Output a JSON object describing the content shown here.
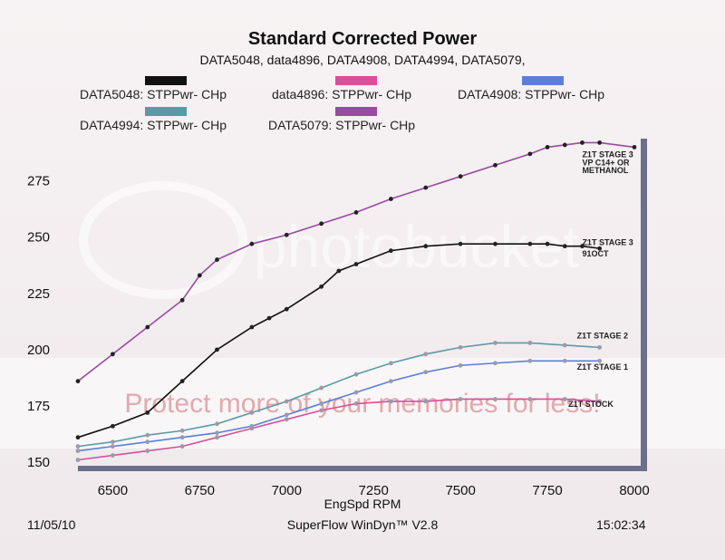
{
  "header": {
    "title": "Standard Corrected Power",
    "subtitle": "DATA5048, data4896, DATA4908, DATA4994, DATA5079,"
  },
  "legend": [
    {
      "label": "DATA5048: STPPwr- CHp",
      "color": "#111111"
    },
    {
      "label": "data4896: STPPwr- CHp",
      "color": "#d94f9a"
    },
    {
      "label": "DATA4908: STPPwr- CHp",
      "color": "#5b7fd6"
    },
    {
      "label": "DATA4994: STPPwr- CHp",
      "color": "#5a9aa6"
    },
    {
      "label": "DATA5079: STPPwr- CHp",
      "color": "#9a4aa0"
    }
  ],
  "annotations": [
    {
      "text": "Z1T STAGE 3",
      "x": 7850,
      "y": 285.5
    },
    {
      "text": "VP C14+ OR",
      "x": 7850,
      "y": 282
    },
    {
      "text": "METHANOL",
      "x": 7850,
      "y": 278.5
    },
    {
      "text": "Z1T STAGE 3",
      "x": 7850,
      "y": 246.5
    },
    {
      "text": "91OCT",
      "x": 7850,
      "y": 241.5
    },
    {
      "text": "Z1T STAGE 2",
      "x": 7835,
      "y": 205
    },
    {
      "text": "Z1T STAGE 1",
      "x": 7835,
      "y": 191
    },
    {
      "text": "Z1T STOCK",
      "x": 7810,
      "y": 174.5
    }
  ],
  "footer": {
    "date": "11/05/10",
    "software": "SuperFlow WinDyn™ V2.8",
    "time": "15:02:34"
  },
  "watermark": {
    "brand": "photobucket",
    "tagline": "Protect more of your memories for less!"
  },
  "chart_data": {
    "type": "line",
    "xlabel": "EngSpd  RPM",
    "ylabel": "",
    "xlim": [
      6400,
      8000
    ],
    "ylim": [
      150,
      295
    ],
    "xticks": [
      6500,
      6750,
      7000,
      7250,
      7500,
      7750,
      8000
    ],
    "yticks": [
      150,
      175,
      200,
      225,
      250,
      275
    ],
    "series": [
      {
        "name": "DATA5079: STPPwr- CHp",
        "color": "#9a4aa0",
        "x": [
          6400,
          6500,
          6600,
          6700,
          6750,
          6800,
          6900,
          7000,
          7100,
          7200,
          7300,
          7400,
          7500,
          7600,
          7700,
          7750,
          7800,
          7850,
          7900,
          8000
        ],
        "y": [
          186,
          198,
          210,
          222,
          233,
          240,
          247,
          251,
          256,
          261,
          267,
          272,
          277,
          282,
          287,
          290,
          291,
          292,
          292,
          290
        ]
      },
      {
        "name": "DATA5048: STPPwr- CHp",
        "color": "#111111",
        "x": [
          6400,
          6500,
          6600,
          6700,
          6800,
          6900,
          6950,
          7000,
          7100,
          7150,
          7200,
          7300,
          7400,
          7500,
          7600,
          7700,
          7750,
          7800,
          7850,
          7900
        ],
        "y": [
          161,
          166,
          172,
          186,
          200,
          210,
          214,
          218,
          228,
          235,
          238,
          244,
          246,
          247,
          247,
          247,
          247,
          246,
          246,
          245
        ]
      },
      {
        "name": "DATA4994: STPPwr- CHp",
        "color": "#5a9aa6",
        "x": [
          6400,
          6500,
          6600,
          6700,
          6800,
          6900,
          7000,
          7100,
          7200,
          7300,
          7400,
          7500,
          7600,
          7700,
          7800,
          7900
        ],
        "y": [
          157,
          159,
          162,
          164,
          167,
          172,
          177,
          183,
          189,
          194,
          198,
          201,
          203,
          203,
          202,
          201
        ]
      },
      {
        "name": "DATA4908: STPPwr- CHp",
        "color": "#5b7fd6",
        "x": [
          6400,
          6500,
          6600,
          6700,
          6800,
          6900,
          7000,
          7100,
          7200,
          7300,
          7400,
          7500,
          7600,
          7700,
          7800,
          7900
        ],
        "y": [
          155,
          157,
          159,
          161,
          163,
          166,
          171,
          176,
          181,
          186,
          190,
          193,
          194,
          195,
          195,
          195
        ]
      },
      {
        "name": "data4896: STPPwr- CHp",
        "color": "#d94f9a",
        "x": [
          6400,
          6500,
          6600,
          6700,
          6800,
          6900,
          7000,
          7100,
          7200,
          7300,
          7400,
          7500,
          7600,
          7700,
          7800,
          7900
        ],
        "y": [
          151,
          153,
          155,
          157,
          161,
          165,
          169,
          173,
          176,
          177,
          177,
          178,
          178,
          178,
          178,
          177
        ]
      }
    ]
  }
}
